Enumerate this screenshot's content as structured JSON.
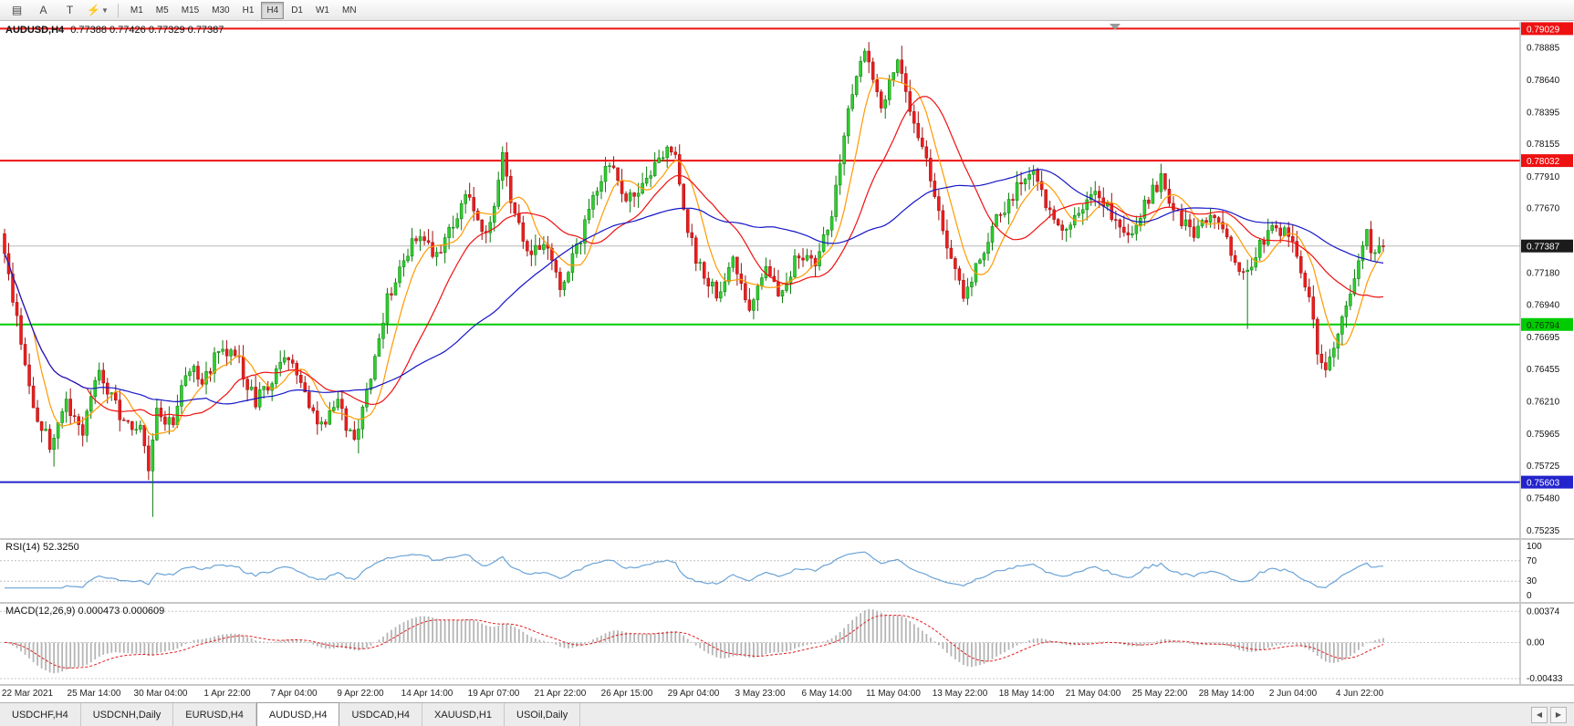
{
  "toolbar": {
    "timeframes": [
      "M1",
      "M5",
      "M15",
      "M30",
      "H1",
      "H4",
      "D1",
      "W1",
      "MN"
    ],
    "active_timeframe": "H4"
  },
  "chart": {
    "title_symbol": "AUDUSD,H4",
    "title_quotes": "0.77388 0.77426 0.77329 0.77387",
    "current_price_label": "0.77387"
  },
  "rsi_panel": {
    "label": "RSI(14) 52.3250"
  },
  "macd_panel": {
    "label": "MACD(12,26,9) 0.000473 0.000609"
  },
  "tabs": {
    "items": [
      "USDCHF,H4",
      "USDCNH,Daily",
      "EURUSD,H4",
      "AUDUSD,H4",
      "USDCAD,H4",
      "XAUUSD,H1",
      "USOil,Daily"
    ],
    "active": "AUDUSD,H4"
  },
  "chart_data": {
    "type": "candlestick",
    "symbol": "AUDUSD",
    "timeframe": "H4",
    "last_quote": {
      "open": 0.77388,
      "high": 0.77426,
      "low": 0.77329,
      "close": 0.77387
    },
    "current_price": 0.77387,
    "price_range": [
      0.7518,
      0.7908
    ],
    "y_axis_ticks": [
      "0.78885",
      "0.78640",
      "0.78395",
      "0.78155",
      "0.77910",
      "0.77670",
      "0.77425",
      "0.77180",
      "0.76940",
      "0.76695",
      "0.76455",
      "0.76210",
      "0.75965",
      "0.75725",
      "0.75480",
      "0.75235"
    ],
    "price_levels": [
      {
        "value": 0.79029,
        "label": "0.79029",
        "color": "#ee1111",
        "text": "#ffffff"
      },
      {
        "value": 0.78032,
        "label": "0.78032",
        "color": "#ee1111",
        "text": "#ffffff"
      },
      {
        "value": 0.76794,
        "label": "0.76794",
        "color": "#00cc00",
        "text": "#103010"
      },
      {
        "value": 0.75603,
        "label": "0.75603",
        "color": "#2323cc",
        "text": "#ffffff"
      }
    ],
    "x_labels": [
      "22 Mar 2021",
      "25 Mar 14:00",
      "30 Mar 04:00",
      "1 Apr 22:00",
      "7 Apr 04:00",
      "9 Apr 22:00",
      "14 Apr 14:00",
      "19 Apr 07:00",
      "21 Apr 22:00",
      "26 Apr 15:00",
      "29 Apr 04:00",
      "3 May 23:00",
      "6 May 14:00",
      "11 May 04:00",
      "13 May 22:00",
      "18 May 14:00",
      "21 May 04:00",
      "25 May 22:00",
      "28 May 14:00",
      "2 Jun 04:00",
      "4 Jun 22:00"
    ],
    "candle_count": 336,
    "price_path": [
      [
        0,
        0.7748
      ],
      [
        2,
        0.7716
      ],
      [
        5,
        0.7664
      ],
      [
        9,
        0.7606
      ],
      [
        12,
        0.759
      ],
      [
        14,
        0.76
      ],
      [
        16,
        0.7622
      ],
      [
        18,
        0.7608
      ],
      [
        20,
        0.76
      ],
      [
        22,
        0.7626
      ],
      [
        24,
        0.7642
      ],
      [
        26,
        0.763
      ],
      [
        28,
        0.7618
      ],
      [
        30,
        0.7606
      ],
      [
        32,
        0.76
      ],
      [
        34,
        0.7602
      ],
      [
        36,
        0.7574
      ],
      [
        38,
        0.7612
      ],
      [
        40,
        0.76
      ],
      [
        42,
        0.7608
      ],
      [
        44,
        0.763
      ],
      [
        46,
        0.7648
      ],
      [
        48,
        0.7638
      ],
      [
        50,
        0.764
      ],
      [
        52,
        0.7654
      ],
      [
        54,
        0.7664
      ],
      [
        56,
        0.7656
      ],
      [
        58,
        0.765
      ],
      [
        60,
        0.7634
      ],
      [
        62,
        0.7622
      ],
      [
        64,
        0.763
      ],
      [
        66,
        0.7638
      ],
      [
        68,
        0.7648
      ],
      [
        70,
        0.7654
      ],
      [
        72,
        0.7642
      ],
      [
        74,
        0.763
      ],
      [
        76,
        0.7614
      ],
      [
        78,
        0.7602
      ],
      [
        80,
        0.761
      ],
      [
        82,
        0.7618
      ],
      [
        84,
        0.7604
      ],
      [
        86,
        0.7594
      ],
      [
        88,
        0.7612
      ],
      [
        90,
        0.7638
      ],
      [
        92,
        0.7668
      ],
      [
        94,
        0.7698
      ],
      [
        96,
        0.7714
      ],
      [
        98,
        0.7728
      ],
      [
        100,
        0.774
      ],
      [
        102,
        0.7748
      ],
      [
        104,
        0.7738
      ],
      [
        106,
        0.773
      ],
      [
        108,
        0.7744
      ],
      [
        110,
        0.7758
      ],
      [
        112,
        0.7768
      ],
      [
        114,
        0.7778
      ],
      [
        116,
        0.7762
      ],
      [
        118,
        0.7748
      ],
      [
        120,
        0.7772
      ],
      [
        122,
        0.7812
      ],
      [
        124,
        0.7772
      ],
      [
        126,
        0.7752
      ],
      [
        128,
        0.7732
      ],
      [
        130,
        0.7738
      ],
      [
        132,
        0.7744
      ],
      [
        134,
        0.7724
      ],
      [
        136,
        0.7706
      ],
      [
        138,
        0.772
      ],
      [
        140,
        0.7736
      ],
      [
        142,
        0.7756
      ],
      [
        144,
        0.7778
      ],
      [
        146,
        0.779
      ],
      [
        148,
        0.7802
      ],
      [
        150,
        0.7786
      ],
      [
        152,
        0.7772
      ],
      [
        154,
        0.778
      ],
      [
        156,
        0.7786
      ],
      [
        158,
        0.7796
      ],
      [
        160,
        0.7804
      ],
      [
        162,
        0.7808
      ],
      [
        164,
        0.7812
      ],
      [
        166,
        0.7762
      ],
      [
        168,
        0.774
      ],
      [
        170,
        0.7722
      ],
      [
        172,
        0.7712
      ],
      [
        174,
        0.7702
      ],
      [
        176,
        0.7716
      ],
      [
        178,
        0.773
      ],
      [
        180,
        0.771
      ],
      [
        182,
        0.7692
      ],
      [
        184,
        0.7706
      ],
      [
        186,
        0.7718
      ],
      [
        188,
        0.771
      ],
      [
        190,
        0.7702
      ],
      [
        192,
        0.7718
      ],
      [
        194,
        0.7734
      ],
      [
        196,
        0.7728
      ],
      [
        198,
        0.7722
      ],
      [
        200,
        0.7742
      ],
      [
        202,
        0.7762
      ],
      [
        204,
        0.78
      ],
      [
        206,
        0.7846
      ],
      [
        208,
        0.787
      ],
      [
        210,
        0.7888
      ],
      [
        212,
        0.7868
      ],
      [
        214,
        0.7842
      ],
      [
        216,
        0.7862
      ],
      [
        218,
        0.7878
      ],
      [
        220,
        0.7856
      ],
      [
        222,
        0.783
      ],
      [
        224,
        0.781
      ],
      [
        226,
        0.779
      ],
      [
        228,
        0.7766
      ],
      [
        230,
        0.7742
      ],
      [
        232,
        0.772
      ],
      [
        234,
        0.77
      ],
      [
        236,
        0.7714
      ],
      [
        238,
        0.773
      ],
      [
        240,
        0.7744
      ],
      [
        242,
        0.7758
      ],
      [
        244,
        0.7768
      ],
      [
        246,
        0.7778
      ],
      [
        248,
        0.7788
      ],
      [
        250,
        0.7798
      ],
      [
        252,
        0.7786
      ],
      [
        254,
        0.7772
      ],
      [
        256,
        0.776
      ],
      [
        258,
        0.7752
      ],
      [
        260,
        0.776
      ],
      [
        262,
        0.7768
      ],
      [
        264,
        0.7774
      ],
      [
        266,
        0.778
      ],
      [
        268,
        0.7772
      ],
      [
        270,
        0.7762
      ],
      [
        272,
        0.7752
      ],
      [
        274,
        0.7742
      ],
      [
        276,
        0.7756
      ],
      [
        278,
        0.7768
      ],
      [
        280,
        0.778
      ],
      [
        282,
        0.779
      ],
      [
        284,
        0.7776
      ],
      [
        286,
        0.7762
      ],
      [
        288,
        0.7754
      ],
      [
        290,
        0.775
      ],
      [
        292,
        0.7758
      ],
      [
        294,
        0.7764
      ],
      [
        296,
        0.7754
      ],
      [
        298,
        0.7744
      ],
      [
        300,
        0.773
      ],
      [
        302,
        0.7718
      ],
      [
        304,
        0.7728
      ],
      [
        306,
        0.7738
      ],
      [
        308,
        0.7746
      ],
      [
        310,
        0.7754
      ],
      [
        312,
        0.7748
      ],
      [
        314,
        0.774
      ],
      [
        316,
        0.7722
      ],
      [
        318,
        0.77
      ],
      [
        320,
        0.7662
      ],
      [
        322,
        0.7646
      ],
      [
        324,
        0.766
      ],
      [
        326,
        0.7682
      ],
      [
        328,
        0.7702
      ],
      [
        330,
        0.7722
      ],
      [
        332,
        0.7746
      ],
      [
        334,
        0.7732
      ],
      [
        335,
        0.7739
      ]
    ],
    "wick_spikes": [
      [
        12,
        "low",
        0.7572
      ],
      [
        36,
        "low",
        0.7534
      ],
      [
        86,
        "low",
        0.7582
      ],
      [
        122,
        "high",
        0.7817
      ],
      [
        210,
        "high",
        0.7892
      ],
      [
        218,
        "high",
        0.789
      ],
      [
        302,
        "low",
        0.7676
      ],
      [
        322,
        "low",
        0.7644
      ]
    ],
    "moving_averages": [
      {
        "period": 8,
        "color": "#ff9a00"
      },
      {
        "period": 21,
        "color": "#f01010"
      },
      {
        "period": 50,
        "color": "#1515c8"
      }
    ],
    "rsi": {
      "period": 14,
      "value": "52.3250",
      "scale_labels": [
        "100",
        "70",
        "30",
        "0"
      ],
      "line_color": "#6ba3d6"
    },
    "macd": {
      "fast": 12,
      "slow": 26,
      "signal": 9,
      "values": [
        "0.000473",
        "0.000609"
      ],
      "scale_labels": [
        "0.00374",
        "0.00",
        "-0.00433"
      ]
    }
  }
}
